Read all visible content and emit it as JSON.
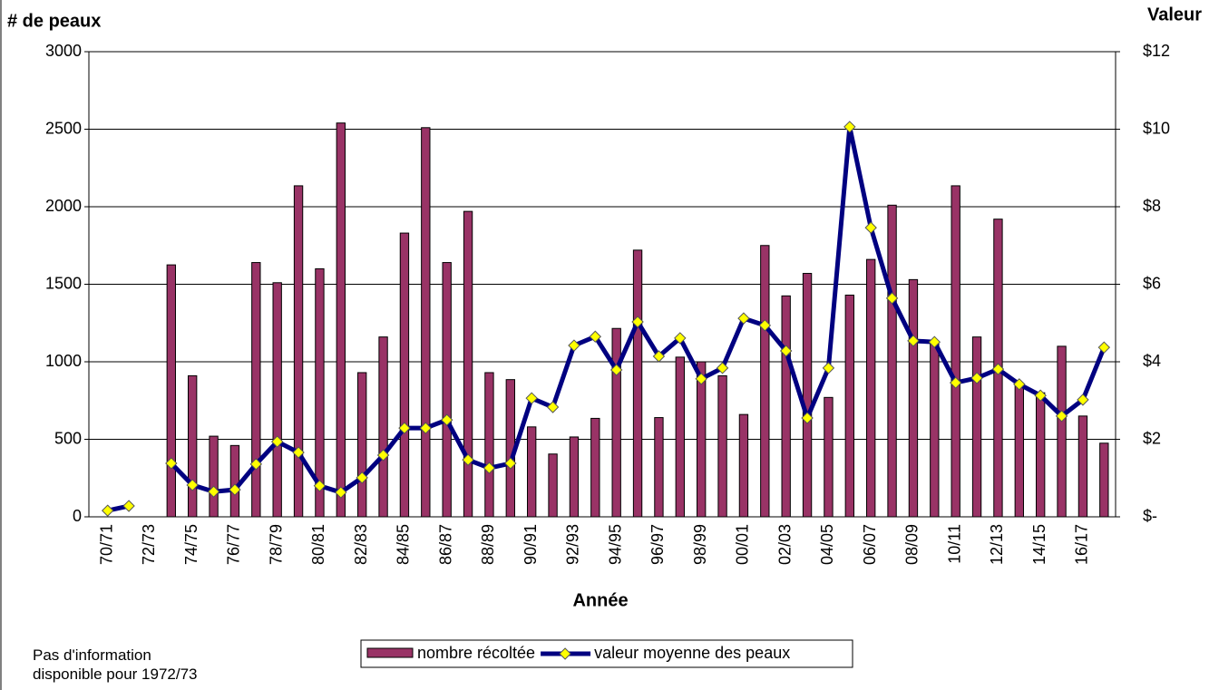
{
  "chart_data": {
    "type": "bar",
    "ylabel": "# de peaux",
    "y2label": "Valeur",
    "xlabel": "Année",
    "note": "Pas d'information disponible pour 1972/73",
    "categories": [
      "70/71",
      null,
      "72/73",
      null,
      "74/75",
      null,
      "76/77",
      null,
      "78/79",
      null,
      "80/81",
      null,
      "82/83",
      null,
      "84/85",
      null,
      "86/87",
      null,
      "88/89",
      null,
      "90/91",
      null,
      "92/93",
      null,
      "94/95",
      null,
      "96/97",
      null,
      "98/99",
      null,
      "00/01",
      null,
      "02/03",
      null,
      "04/05",
      null,
      "06/07",
      null,
      "08/09",
      null,
      "10/11",
      null,
      "12/13",
      null,
      "14/15",
      null,
      "16/17",
      null
    ],
    "series": [
      {
        "name": "nombre récoltée",
        "type": "bar",
        "color": "#993366",
        "values": [
          null,
          null,
          null,
          1625,
          910,
          520,
          460,
          1640,
          1510,
          2135,
          1600,
          2540,
          930,
          1160,
          1830,
          2510,
          1640,
          1970,
          930,
          885,
          580,
          405,
          515,
          635,
          1215,
          1720,
          640,
          1030,
          1000,
          910,
          660,
          1750,
          1425,
          1570,
          770,
          1430,
          1660,
          2010,
          1530,
          1130,
          2135,
          1160,
          1920,
          850,
          800,
          1100,
          650,
          475
        ]
      },
      {
        "name": "valeur moyenne des peaux",
        "type": "line",
        "axis": "y2",
        "color": "#000080",
        "marker_color": "#ffff00",
        "values": [
          0.16,
          0.28,
          null,
          1.38,
          0.82,
          0.65,
          0.7,
          1.36,
          1.94,
          1.66,
          0.8,
          0.63,
          1.01,
          1.59,
          2.29,
          2.29,
          2.5,
          1.47,
          1.26,
          1.38,
          3.06,
          2.83,
          4.42,
          4.65,
          3.79,
          5.03,
          4.14,
          4.61,
          3.56,
          3.84,
          5.12,
          4.94,
          4.28,
          2.55,
          3.84,
          10.06,
          7.46,
          5.64,
          4.54,
          4.51,
          3.46,
          3.58,
          3.81,
          3.42,
          3.13,
          2.6,
          3.02,
          4.37
        ]
      }
    ],
    "ylim": [
      0,
      3000
    ],
    "yticks": [
      0,
      500,
      1000,
      1500,
      2000,
      2500,
      3000
    ],
    "y2lim": [
      0,
      12
    ],
    "y2ticks": [
      {
        "value": 0,
        "label": "$-"
      },
      {
        "value": 2,
        "label": "$2"
      },
      {
        "value": 4,
        "label": "$4"
      },
      {
        "value": 6,
        "label": "$6"
      },
      {
        "value": 8,
        "label": "$8"
      },
      {
        "value": 10,
        "label": "$10"
      },
      {
        "value": 12,
        "label": "$12"
      }
    ],
    "grid": true
  }
}
